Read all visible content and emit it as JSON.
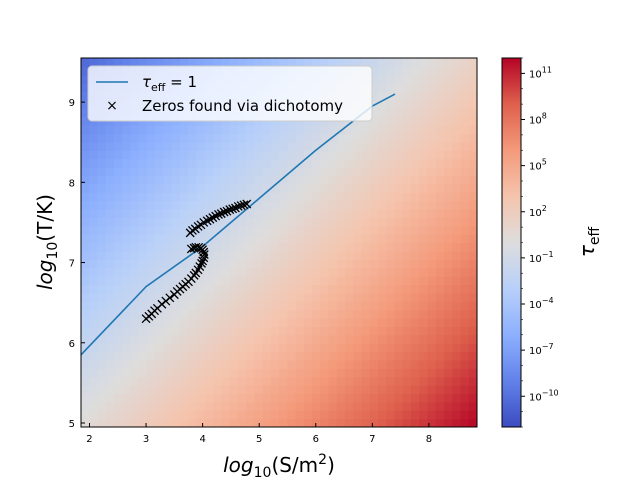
{
  "chart_data": {
    "type": "heatmap",
    "xlabel": "log10(S/m2)",
    "ylabel": "log10(T/K)",
    "xlim": [
      1.85,
      8.85
    ],
    "ylim": [
      4.95,
      9.55
    ],
    "xticks": [
      2,
      3,
      4,
      5,
      6,
      7,
      8
    ],
    "yticks": [
      5,
      6,
      7,
      8,
      9
    ],
    "heatmap": {
      "quantity": "τ_eff",
      "log_tau_range": [
        -12,
        12
      ],
      "colorscale": "coolwarm",
      "corner_values_log": {
        "bottom-left": 0.3,
        "top-left": -10.5,
        "bottom-right": 12,
        "top-right": 1.5
      }
    },
    "colorbar": {
      "label": "τeff",
      "scale": "log",
      "tick_exponents": [
        -10,
        -7,
        -4,
        -1,
        2,
        5,
        8,
        11
      ],
      "tick_base": "10"
    },
    "legend": {
      "placement": "top-left",
      "entries": [
        {
          "label": "τeff = 1",
          "marker": "line",
          "color": "#1f77b4"
        },
        {
          "label": "Zeros found via dichotomy",
          "marker": "x",
          "color": "#000000"
        }
      ]
    },
    "series": [
      {
        "name": "τeff = 1",
        "type": "line",
        "color": "#1f77b4",
        "x": [
          1.85,
          3.0,
          4.0,
          5.0,
          6.0,
          7.0,
          7.4
        ],
        "y": [
          5.85,
          6.7,
          7.2,
          7.8,
          8.4,
          8.95,
          9.1
        ]
      },
      {
        "name": "Zeros found via dichotomy",
        "type": "scatter",
        "marker": "x",
        "color": "#000000",
        "x": [
          3.0,
          3.05,
          3.1,
          3.15,
          3.2,
          3.28,
          3.35,
          3.42,
          3.5,
          3.55,
          3.6,
          3.65,
          3.7,
          3.75,
          3.8,
          3.85,
          3.88,
          3.92,
          3.95,
          3.98,
          4.0,
          4.02,
          4.03,
          4.02,
          4.0,
          3.97,
          3.93,
          3.88,
          3.85,
          3.8,
          3.78,
          3.82,
          3.87,
          3.92,
          3.97,
          4.02,
          4.08,
          4.13,
          4.18,
          4.23,
          4.28,
          4.33,
          4.38,
          4.43,
          4.48,
          4.53,
          4.58,
          4.63,
          4.68,
          4.73,
          4.78
        ],
        "y": [
          6.3,
          6.33,
          6.36,
          6.4,
          6.43,
          6.48,
          6.52,
          6.56,
          6.6,
          6.64,
          6.67,
          6.7,
          6.73,
          6.76,
          6.8,
          6.84,
          6.87,
          6.91,
          6.95,
          6.99,
          7.02,
          7.06,
          7.1,
          7.13,
          7.16,
          7.18,
          7.19,
          7.19,
          7.18,
          7.17,
          7.37,
          7.4,
          7.42,
          7.45,
          7.47,
          7.5,
          7.52,
          7.54,
          7.56,
          7.58,
          7.6,
          7.61,
          7.63,
          7.64,
          7.66,
          7.67,
          7.68,
          7.7,
          7.71,
          7.72,
          7.73
        ]
      }
    ]
  }
}
